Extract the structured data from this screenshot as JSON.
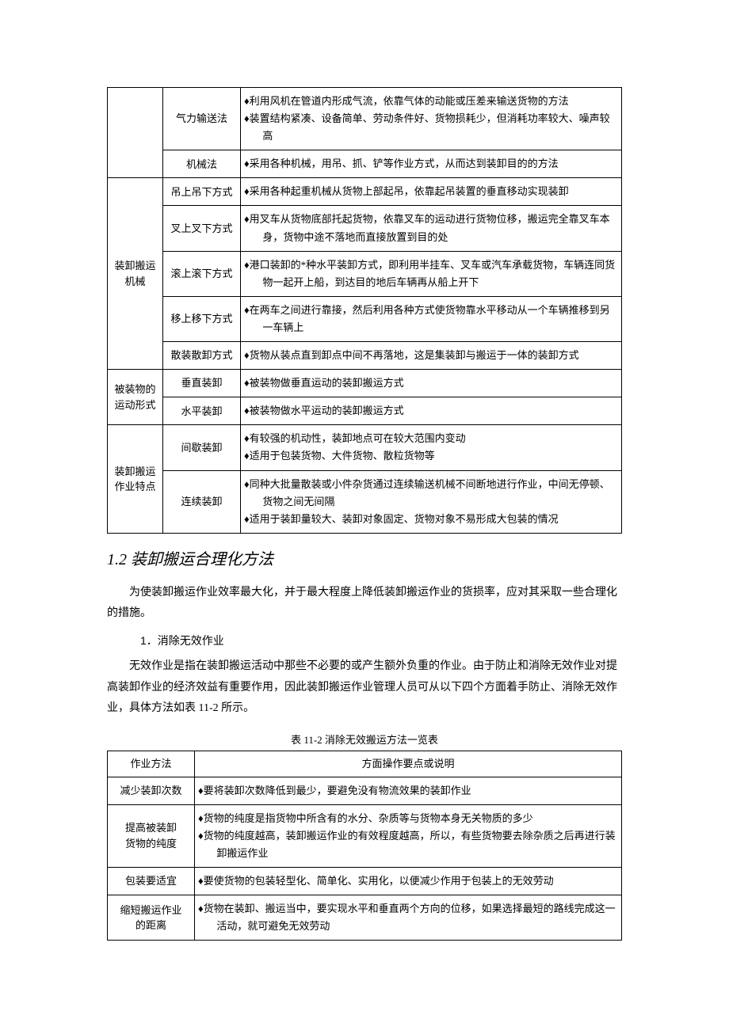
{
  "table1": {
    "groups": [
      {
        "category": "",
        "rows": [
          {
            "method": "气力输送法",
            "desc": [
              "♦利用风机在管道内形成气流，依靠气体的动能或压差来输送货物的方法",
              "♦装置结构紧凑、设备简单、劳动条件好、货物损耗少，但消耗功率较大、噪声较高"
            ]
          },
          {
            "method": "机械法",
            "desc": [
              "♦采用各种机械，用吊、抓、铲等作业方式，从而达到装卸目的的方法"
            ]
          }
        ]
      },
      {
        "category": "装卸搬运机械",
        "rows": [
          {
            "method": "吊上吊下方式",
            "desc": [
              "♦采用各种起重机械从货物上部起吊，依靠起吊装置的垂直移动实现装卸"
            ]
          },
          {
            "method": "叉上叉下方式",
            "desc": [
              "♦用叉车从货物底部托起货物，依靠叉车的运动进行货物位移，搬运完全靠叉车本身，货物中途不落地而直接放置到目的处"
            ]
          },
          {
            "method": "滚上滚下方式",
            "desc": [
              "♦港口装卸的*种水平装卸方式，即利用半挂车、叉车或汽车承载货物，车辆连同货物一起开上船，到达目的地后车辆再从船上开下"
            ]
          },
          {
            "method": "移上移下方式",
            "desc": [
              "♦在两车之间进行靠接，然后利用各种方式使货物靠水平移动从一个车辆推移到另一车辆上"
            ]
          },
          {
            "method": "散装散卸方式",
            "desc": [
              "♦货物从装点直到卸点中间不再落地，这是集装卸与搬运于一体的装卸方式"
            ]
          }
        ]
      },
      {
        "category": "被装物的运动形式",
        "rows": [
          {
            "method": "垂直装卸",
            "desc": [
              "♦被装物做垂直运动的装卸搬运方式"
            ]
          },
          {
            "method": "水平装卸",
            "desc": [
              "♦被装物做水平运动的装卸搬运方式"
            ]
          }
        ]
      },
      {
        "category": "装卸搬运作业特点",
        "rows": [
          {
            "method": "间歇装卸",
            "desc": [
              "♦有较强的机动性，装卸地点可在较大范围内变动",
              "♦适用于包装货物、大件货物、散粒货物等"
            ]
          },
          {
            "method": "连续装卸",
            "desc": [
              "♦同种大批量散装或小件杂货通过连续输送机械不间断地进行作业，中间无停顿、货物之间无间隔",
              "♦适用于装卸量较大、装卸对象固定、货物对象不易形成大包装的情况"
            ]
          }
        ]
      }
    ]
  },
  "heading": {
    "num": "1.2",
    "text": "装卸搬运合理化方法"
  },
  "para1": "为使装卸搬运作业效率最大化，并于最大程度上降低装卸搬运作业的货损率，应对其采取一些合理化的措施。",
  "subitem": {
    "idx": "1",
    "text": "．消除无效作业"
  },
  "para2": "无效作业是指在装卸搬运活动中那些不必要的或产生额外负重的作业。由于防止和消除无效作业对提高装卸作业的经济效益有重要作用，因此装卸搬运作业管理人员可从以下四个方面着手防止、消除无效作业，具体方法如表 11-2 所示。",
  "table2": {
    "caption": "表 11-2 消除无效搬运方法一览表",
    "head": {
      "c1": "作业方法",
      "c2": "方面操作要点或说明"
    },
    "rows": [
      {
        "method": "减少装卸次数",
        "desc": [
          "♦要将装卸次数降低到最少，要避免没有物流效果的装卸作业"
        ]
      },
      {
        "method_l1": "提高被装卸",
        "method_l2": "货物的纯度",
        "desc": [
          "♦货物的纯度是指货物中所含有的水分、杂质等与货物本身无关物质的多少",
          "♦货物的纯度越高，装卸搬运作业的有效程度越高，所以，有些货物要去除杂质之后再进行装卸搬运作业"
        ]
      },
      {
        "method": "包装要适宜",
        "desc": [
          "♦要使货物的包装轻型化、简单化、实用化，以便减少作用于包装上的无效劳动"
        ]
      },
      {
        "method_l1": "缩短搬运作业",
        "method_l2": "的距离",
        "desc": [
          "♦货物在装卸、搬运当中，要实现水平和垂直两个方向的位移，如果选择最短的路线完成这一活动，就可避免无效劳动"
        ]
      }
    ]
  }
}
